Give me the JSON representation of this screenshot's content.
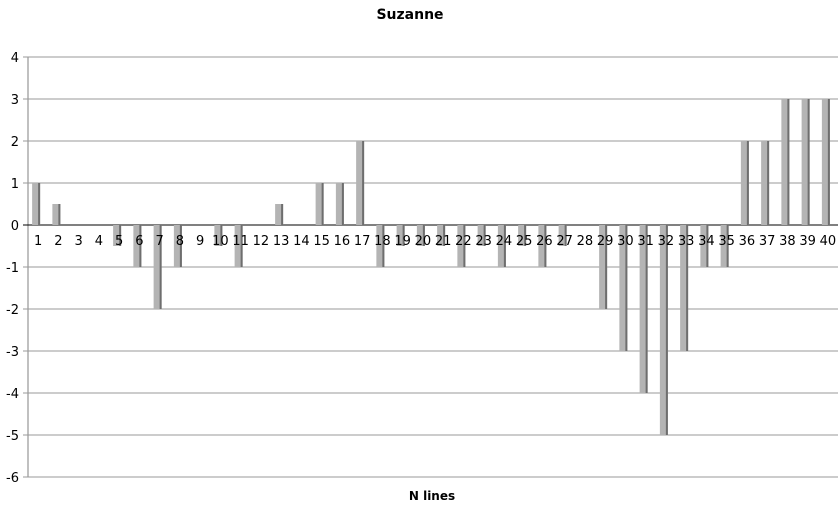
{
  "chart_data": {
    "type": "bar",
    "title": "Suzanne",
    "xlabel": "N lines",
    "ylabel": "",
    "ylim": [
      -6,
      4
    ],
    "yticks": [
      4,
      3,
      2,
      1,
      0,
      -1,
      -2,
      -3,
      -4,
      -5,
      -6
    ],
    "grid": true,
    "legend": "none",
    "categories": [
      "1",
      "2",
      "3",
      "4",
      "5",
      "6",
      "7",
      "8",
      "9",
      "10",
      "11",
      "12",
      "13",
      "14",
      "15",
      "16",
      "17",
      "18",
      "19",
      "20",
      "21",
      "22",
      "23",
      "24",
      "25",
      "26",
      "27",
      "28",
      "29",
      "30",
      "31",
      "32",
      "33",
      "34",
      "35",
      "36",
      "37",
      "38",
      "39",
      "40"
    ],
    "values": [
      1,
      0.5,
      0,
      0,
      -0.5,
      -1,
      -2,
      -1,
      0,
      -0.5,
      -1,
      0,
      0.5,
      0,
      1,
      1,
      2,
      -1,
      -0.5,
      -0.5,
      -0.5,
      -1,
      -0.5,
      -1,
      -0.5,
      -1,
      -0.5,
      0,
      -2,
      -3,
      -4,
      -5,
      -3,
      -1,
      -1,
      2,
      2,
      3,
      3,
      3
    ],
    "colors": {
      "bar_face": "#b4b4b4",
      "bar_shadow": "#6e6e6e",
      "grid": "#9a9a9a",
      "axis": "#808080"
    }
  }
}
